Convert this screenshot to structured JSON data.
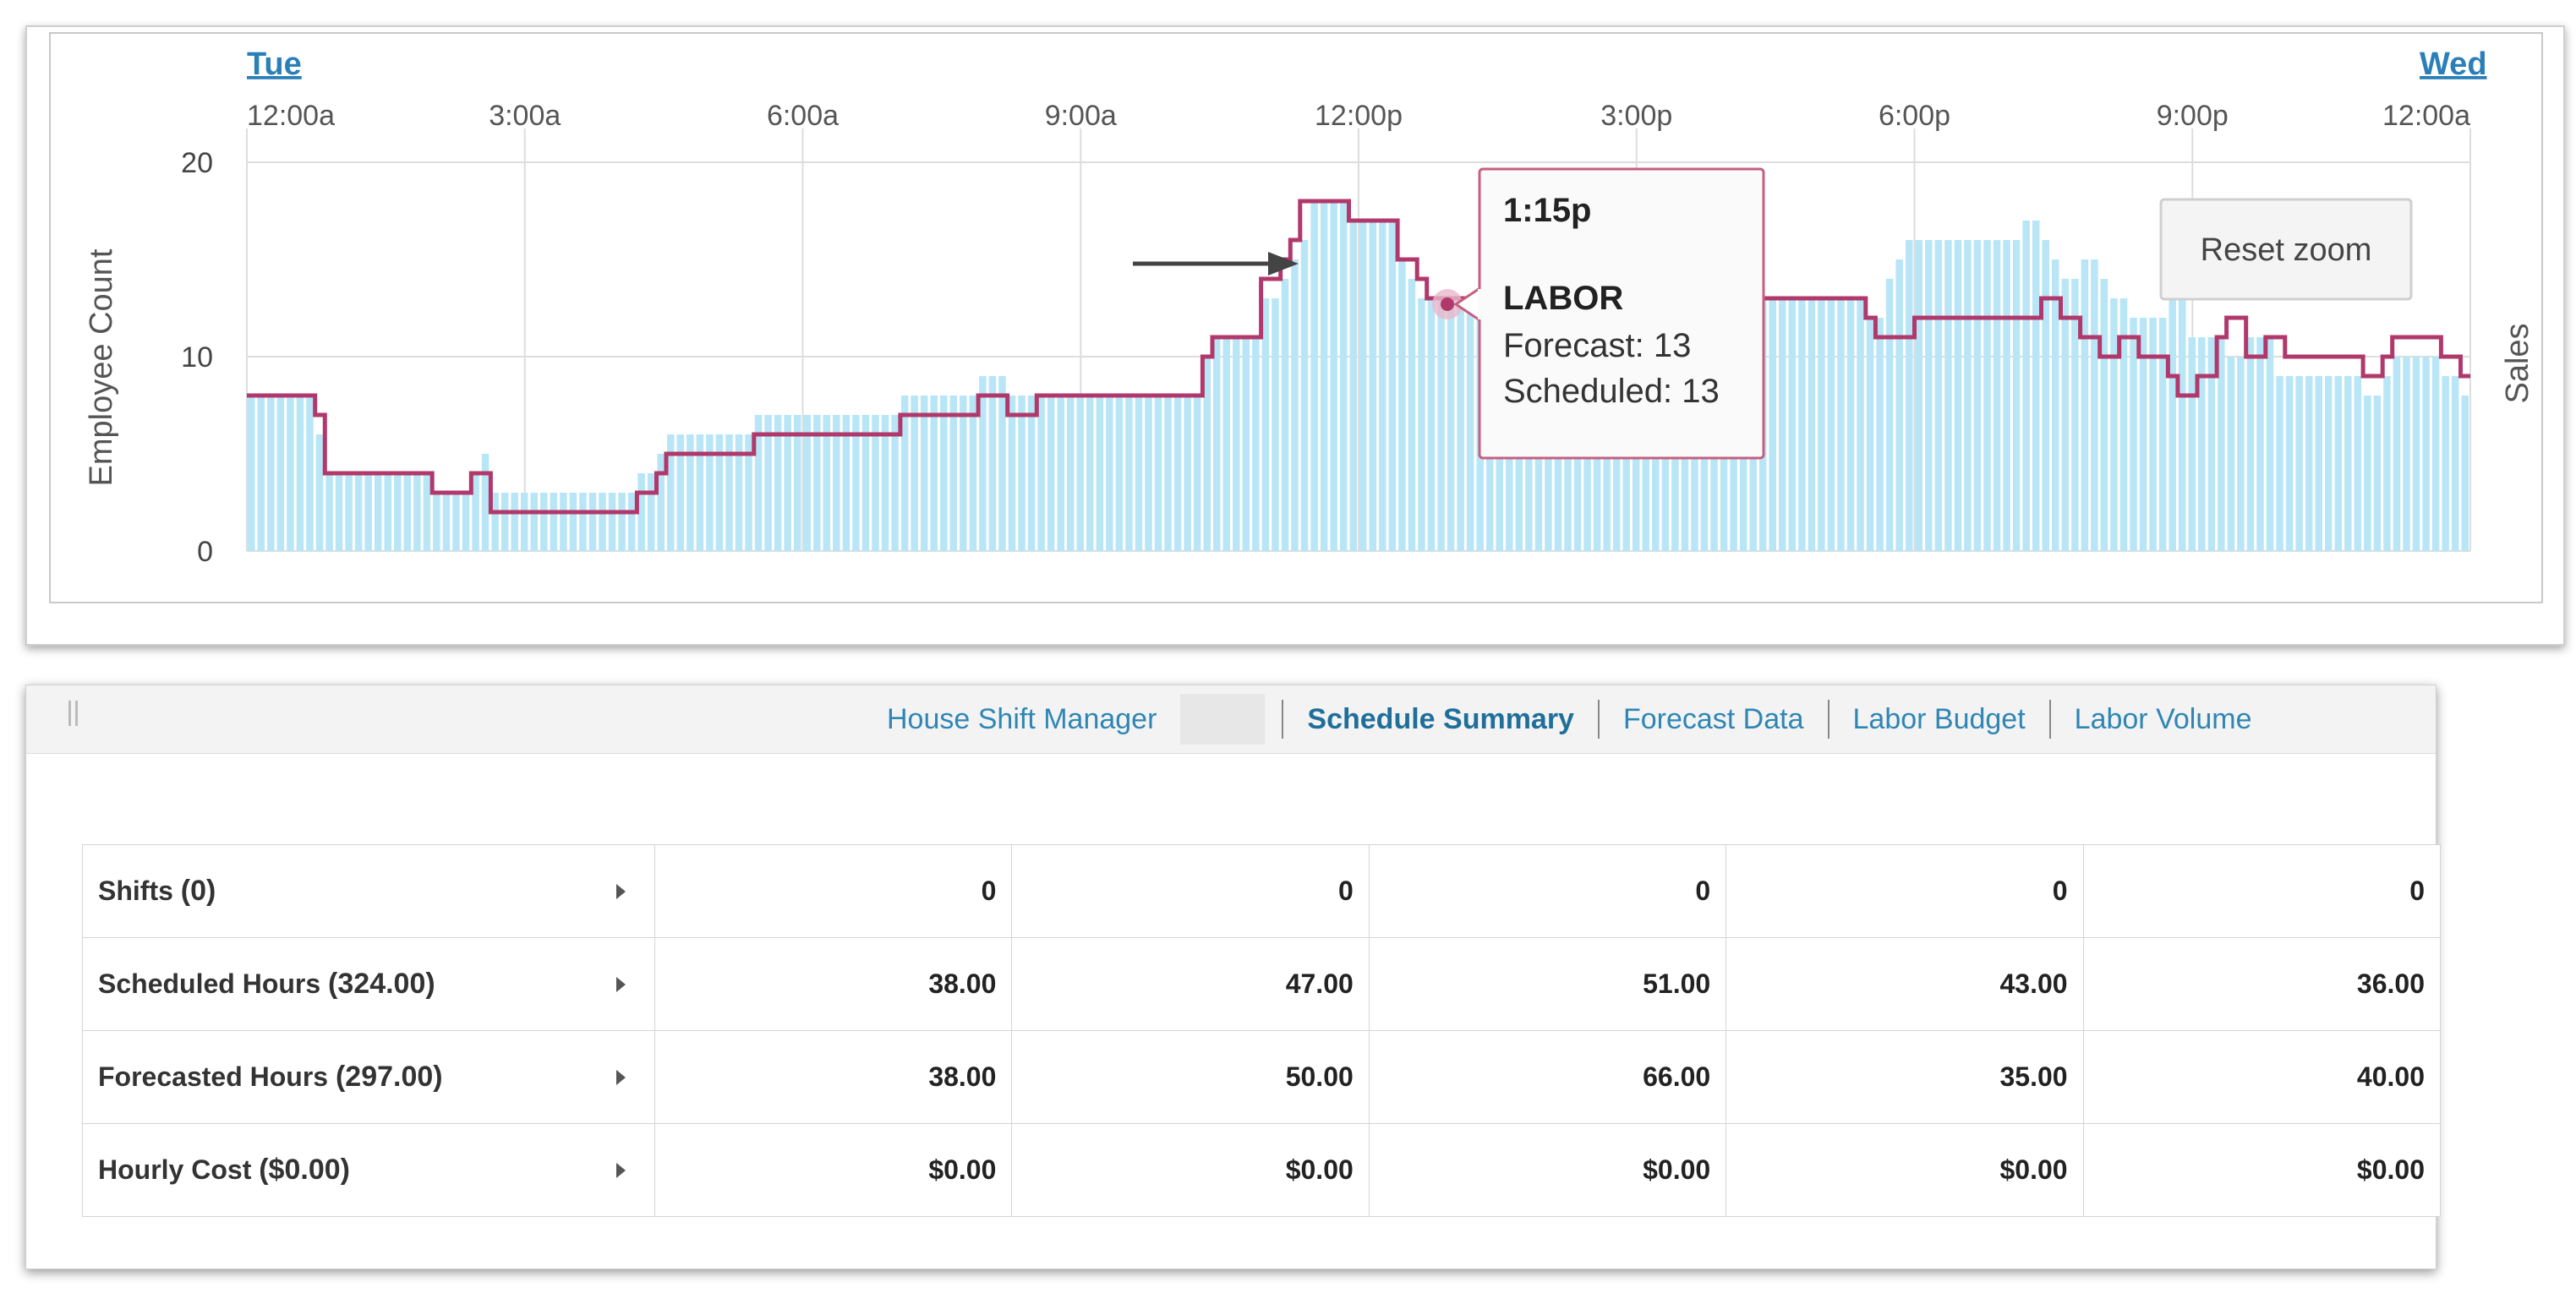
{
  "chart_data": {
    "type": "bar",
    "day_links": {
      "start": "Tue",
      "end": "Wed"
    },
    "x_tick_labels": [
      "12:00a",
      "3:00a",
      "6:00a",
      "9:00a",
      "12:00p",
      "3:00p",
      "6:00p",
      "9:00p",
      "12:00a"
    ],
    "y_ticks": [
      0,
      10,
      20
    ],
    "ylim": [
      0,
      20
    ],
    "ylabel": "Employee Count",
    "y2label": "Sales",
    "grid": true,
    "series": [
      {
        "values": [
          8,
          8,
          8,
          8,
          8,
          8,
          8,
          6,
          4,
          4,
          4,
          4,
          4,
          4,
          4,
          4,
          4,
          4,
          4,
          3,
          3,
          3,
          3,
          4,
          5,
          3,
          3,
          3,
          3,
          3,
          3,
          3,
          3,
          3,
          3,
          3,
          3,
          3,
          3,
          3,
          4,
          4,
          5,
          6,
          6,
          6,
          6,
          6,
          6,
          6,
          6,
          6,
          7,
          7,
          7,
          7,
          7,
          7,
          7,
          7,
          7,
          7,
          7,
          7,
          7,
          7,
          7,
          8,
          8,
          8,
          8,
          8,
          8,
          8,
          8,
          9,
          9,
          9,
          8,
          8,
          8,
          8,
          8,
          8,
          8,
          8,
          8,
          8,
          8,
          8,
          8,
          8,
          8,
          8,
          8,
          8,
          8,
          8,
          10,
          11,
          11,
          11,
          11,
          11,
          13,
          13,
          14,
          15,
          16,
          18,
          18,
          18,
          18,
          17,
          17,
          17,
          17,
          17,
          15,
          14,
          13,
          13,
          13,
          13,
          13,
          13,
          13,
          13,
          13,
          13,
          13,
          13,
          13,
          13,
          13,
          13,
          13,
          13,
          13,
          13,
          13,
          13,
          13,
          13,
          13,
          13,
          13,
          13,
          13,
          13,
          13,
          13,
          13,
          13,
          13,
          13,
          13,
          13,
          13,
          13,
          13,
          13,
          13,
          13,
          13,
          13,
          12,
          12,
          14,
          15,
          16,
          16,
          16,
          16,
          16,
          16,
          16,
          16,
          16,
          16,
          16,
          16,
          17,
          17,
          16,
          15,
          14,
          14,
          15,
          15,
          14,
          13,
          13,
          12,
          12,
          12,
          12,
          13,
          13,
          11,
          11,
          11,
          11,
          10,
          10,
          11,
          11,
          11,
          9,
          9,
          9,
          9,
          9,
          9,
          9,
          9,
          9,
          8,
          8,
          9,
          10,
          10,
          10,
          10,
          10,
          9,
          9,
          8
        ]
      },
      {
        "values": [
          8,
          8,
          8,
          8,
          8,
          8,
          8,
          7,
          4,
          4,
          4,
          4,
          4,
          4,
          4,
          4,
          4,
          4,
          4,
          3,
          3,
          3,
          3,
          4,
          4,
          2,
          2,
          2,
          2,
          2,
          2,
          2,
          2,
          2,
          2,
          2,
          2,
          2,
          2,
          2,
          3,
          3,
          4,
          5,
          5,
          5,
          5,
          5,
          5,
          5,
          5,
          5,
          6,
          6,
          6,
          6,
          6,
          6,
          6,
          6,
          6,
          6,
          6,
          6,
          6,
          6,
          6,
          7,
          7,
          7,
          7,
          7,
          7,
          7,
          7,
          8,
          8,
          8,
          7,
          7,
          7,
          8,
          8,
          8,
          8,
          8,
          8,
          8,
          8,
          8,
          8,
          8,
          8,
          8,
          8,
          8,
          8,
          8,
          10,
          11,
          11,
          11,
          11,
          11,
          14,
          14,
          15,
          16,
          18,
          18,
          18,
          18,
          18,
          17,
          17,
          17,
          17,
          17,
          15,
          15,
          14,
          13,
          13,
          13,
          13,
          13,
          13,
          13,
          13,
          13,
          13,
          13,
          13,
          13,
          13,
          13,
          13,
          13,
          13,
          13,
          13,
          13,
          13,
          13,
          13,
          13,
          13,
          13,
          13,
          13,
          13,
          13,
          13,
          13,
          13,
          13,
          13,
          13,
          13,
          13,
          13,
          13,
          13,
          13,
          13,
          13,
          12,
          11,
          11,
          11,
          11,
          12,
          12,
          12,
          12,
          12,
          12,
          12,
          12,
          12,
          12,
          12,
          12,
          12,
          13,
          13,
          12,
          12,
          11,
          11,
          10,
          10,
          11,
          11,
          10,
          10,
          10,
          9,
          8,
          8,
          9,
          9,
          11,
          12,
          12,
          10,
          10,
          11,
          11,
          10,
          10,
          10,
          10,
          10,
          10,
          10,
          10,
          9,
          9,
          10,
          11,
          11,
          11,
          11,
          11,
          10,
          10,
          9
        ]
      }
    ],
    "colors": {
      "bars": "#b9e6f7",
      "line": "#b0386b",
      "grid": "#dddddd",
      "tooltip_border": "#c4607f"
    },
    "tooltip": {
      "time": "1:15p",
      "series": "LABOR",
      "lines": [
        "Forecast: 13",
        "Scheduled: 13"
      ]
    },
    "reset_zoom_label": "Reset zoom"
  },
  "tabs": [
    {
      "label": "House Shift Manager",
      "active": false
    },
    {
      "label": "Schedule Summary",
      "active": true
    },
    {
      "label": "Forecast Data",
      "active": false
    },
    {
      "label": "Labor Budget",
      "active": false
    },
    {
      "label": "Labor Volume",
      "active": false
    }
  ],
  "summary": {
    "rows": [
      {
        "label": "Shifts",
        "count": "(0)",
        "values": [
          "0",
          "0",
          "0",
          "0",
          "0"
        ]
      },
      {
        "label": "Scheduled Hours",
        "count": "(324.00)",
        "values": [
          "38.00",
          "47.00",
          "51.00",
          "43.00",
          "36.00"
        ]
      },
      {
        "label": "Forecasted Hours",
        "count": "(297.00)",
        "values": [
          "38.00",
          "50.00",
          "66.00",
          "35.00",
          "40.00"
        ]
      },
      {
        "label": "Hourly Cost",
        "count": "($0.00)",
        "values": [
          "$0.00",
          "$0.00",
          "$0.00",
          "$0.00",
          "$0.00"
        ]
      }
    ]
  }
}
